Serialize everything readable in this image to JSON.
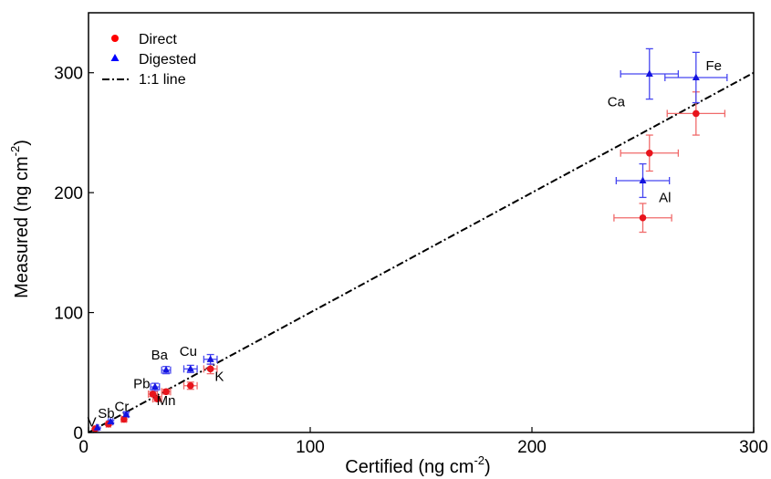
{
  "chart_data": {
    "type": "scatter",
    "xlabel": "Certified (ng cm",
    "xlabel_sup": "-2",
    "xlabel_end": ")",
    "ylabel": "Measured (ng cm",
    "ylabel_sup": "-2",
    "ylabel_end": ")",
    "xlim": [
      0,
      300
    ],
    "ylim": [
      0,
      350
    ],
    "xticks": [
      0,
      100,
      200,
      300
    ],
    "yticks": [
      0,
      100,
      200,
      300
    ],
    "legend_position": "top-left",
    "legend": [
      {
        "label": "Direct",
        "marker": "circle",
        "color": "#ff0000"
      },
      {
        "label": "Digested",
        "marker": "triangle",
        "color": "#0000ff"
      },
      {
        "label": "1:1 line",
        "marker": "dashdot",
        "color": "#000000"
      }
    ],
    "series": [
      {
        "name": "Direct",
        "color": "#e8141c",
        "bar_color": "#f06a6a",
        "points": [
          {
            "x": 3,
            "y": 3,
            "xerr": 0.5,
            "yerr": 0.5
          },
          {
            "x": 9,
            "y": 7,
            "xerr": 1,
            "yerr": 1
          },
          {
            "x": 16,
            "y": 11,
            "xerr": 1,
            "yerr": 2
          },
          {
            "x": 29,
            "y": 32,
            "xerr": 2,
            "yerr": 2
          },
          {
            "x": 31,
            "y": 28,
            "xerr": 2,
            "yerr": 2
          },
          {
            "x": 35,
            "y": 34,
            "xerr": 2,
            "yerr": 2
          },
          {
            "x": 46,
            "y": 39,
            "xerr": 3,
            "yerr": 3
          },
          {
            "x": 55,
            "y": 53,
            "xerr": 3,
            "yerr": 4
          },
          {
            "x": 250,
            "y": 179,
            "xerr": 13,
            "yerr": 12
          },
          {
            "x": 253,
            "y": 233,
            "xerr": 13,
            "yerr": 15
          },
          {
            "x": 274,
            "y": 266,
            "xerr": 13,
            "yerr": 18
          }
        ]
      },
      {
        "name": "Digested",
        "color": "#1414e0",
        "bar_color": "#4646f0",
        "points": [
          {
            "x": 4,
            "y": 4,
            "xerr": 0.5,
            "yerr": 0.5
          },
          {
            "x": 10,
            "y": 9,
            "xerr": 1,
            "yerr": 1
          },
          {
            "x": 17,
            "y": 15,
            "xerr": 1,
            "yerr": 2
          },
          {
            "x": 30,
            "y": 38,
            "xerr": 2,
            "yerr": 3
          },
          {
            "x": 35,
            "y": 52,
            "xerr": 2,
            "yerr": 3
          },
          {
            "x": 46,
            "y": 53,
            "xerr": 3,
            "yerr": 3
          },
          {
            "x": 55,
            "y": 61,
            "xerr": 3,
            "yerr": 4
          },
          {
            "x": 250,
            "y": 210,
            "xerr": 12,
            "yerr": 14
          },
          {
            "x": 253,
            "y": 299,
            "xerr": 13,
            "yerr": 21
          },
          {
            "x": 274,
            "y": 296,
            "xerr": 14,
            "yerr": 21
          }
        ]
      }
    ],
    "reference_line": {
      "name": "1:1 line",
      "x": [
        0,
        300
      ],
      "y": [
        0,
        300
      ]
    },
    "annotations": [
      {
        "text": "V",
        "x": 1.5,
        "y": 5
      },
      {
        "text": "Sb",
        "x": 8,
        "y": 12
      },
      {
        "text": "Cr",
        "x": 15,
        "y": 18
      },
      {
        "text": "Pb",
        "x": 24,
        "y": 37
      },
      {
        "text": "Mn",
        "x": 35,
        "y": 23
      },
      {
        "text": "Ba",
        "x": 32,
        "y": 61
      },
      {
        "text": "Cu",
        "x": 45,
        "y": 64
      },
      {
        "text": "K",
        "x": 59,
        "y": 43
      },
      {
        "text": "Ca",
        "x": 238,
        "y": 272
      },
      {
        "text": "Fe",
        "x": 282,
        "y": 302
      },
      {
        "text": "Al",
        "x": 260,
        "y": 192
      }
    ]
  }
}
